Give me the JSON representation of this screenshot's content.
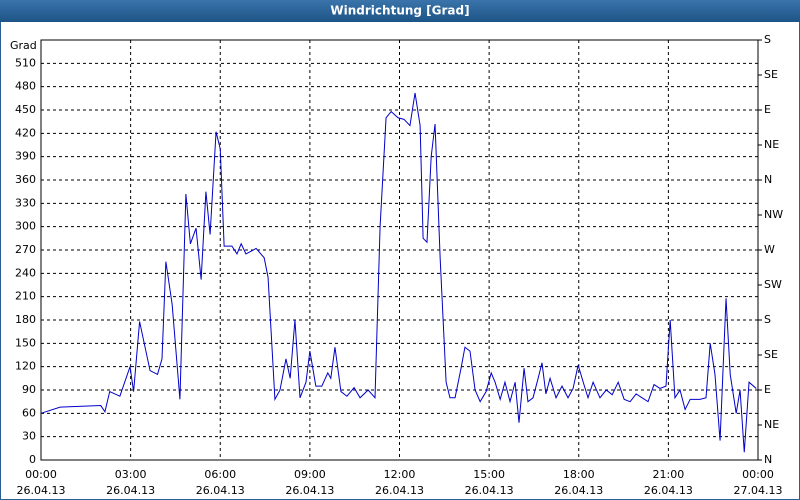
{
  "chart_data": {
    "type": "line",
    "title": "Windrichtung [Grad]",
    "ylabel": "Grad",
    "color": "#0000c8",
    "grid": true,
    "xlim": [
      0,
      24
    ],
    "ylim": [
      0,
      540
    ],
    "y2lim": [
      0,
      540
    ],
    "xticks": [
      {
        "value": 0,
        "label": "00:00"
      },
      {
        "value": 3,
        "label": "03:00"
      },
      {
        "value": 6,
        "label": "06:00"
      },
      {
        "value": 9,
        "label": "09:00"
      },
      {
        "value": 12,
        "label": "12:00"
      },
      {
        "value": 15,
        "label": "15:00"
      },
      {
        "value": 18,
        "label": "18:00"
      },
      {
        "value": 21,
        "label": "21:00"
      },
      {
        "value": 24,
        "label": "00:00"
      }
    ],
    "xtick_dates": [
      "26.04.13",
      "26.04.13",
      "26.04.13",
      "26.04.13",
      "26.04.13",
      "26.04.13",
      "26.04.13",
      "26.04.13",
      "27.04.13"
    ],
    "yticks": [
      0,
      30,
      60,
      90,
      120,
      150,
      180,
      210,
      240,
      270,
      300,
      330,
      360,
      390,
      420,
      450,
      480,
      510
    ],
    "y2ticks": [
      {
        "value": 0,
        "label": "N"
      },
      {
        "value": 45,
        "label": "NE"
      },
      {
        "value": 90,
        "label": "E"
      },
      {
        "value": 135,
        "label": "SE"
      },
      {
        "value": 180,
        "label": "S"
      },
      {
        "value": 225,
        "label": "SW"
      },
      {
        "value": 270,
        "label": "W"
      },
      {
        "value": 315,
        "label": "NW"
      },
      {
        "value": 360,
        "label": "N"
      },
      {
        "value": 405,
        "label": "NE"
      },
      {
        "value": 450,
        "label": "E"
      },
      {
        "value": 495,
        "label": "SE"
      },
      {
        "value": 540,
        "label": "S"
      }
    ],
    "x": [
      0,
      0.64,
      2.0,
      2.14,
      2.3,
      2.64,
      2.98,
      3.1,
      3.3,
      3.65,
      3.9,
      4.05,
      4.18,
      4.39,
      4.65,
      4.85,
      5.0,
      5.19,
      5.36,
      5.52,
      5.66,
      5.86,
      6.0,
      6.13,
      6.39,
      6.56,
      6.7,
      6.86,
      7.2,
      7.47,
      7.6,
      7.83,
      8.0,
      8.2,
      8.34,
      8.5,
      8.67,
      8.87,
      9.0,
      9.2,
      9.4,
      9.6,
      9.7,
      9.84,
      10.04,
      10.24,
      10.48,
      10.68,
      10.95,
      11.18,
      11.35,
      11.55,
      11.72,
      11.95,
      12.15,
      12.35,
      12.52,
      12.69,
      12.79,
      12.92,
      13.06,
      13.19,
      13.36,
      13.56,
      13.69,
      13.86,
      14.06,
      14.19,
      14.36,
      14.53,
      14.7,
      14.9,
      15.07,
      15.2,
      15.37,
      15.53,
      15.7,
      15.87,
      16.0,
      16.17,
      16.3,
      16.47,
      16.64,
      16.77,
      16.9,
      17.04,
      17.24,
      17.44,
      17.64,
      17.81,
      17.98,
      18.15,
      18.31,
      18.48,
      18.71,
      18.92,
      19.12,
      19.32,
      19.52,
      19.72,
      19.92,
      20.12,
      20.32,
      20.52,
      20.72,
      20.92,
      21.06,
      21.22,
      21.39,
      21.56,
      21.73,
      22.06,
      22.26,
      22.4,
      22.56,
      22.73,
      22.93,
      23.07,
      23.27,
      23.4,
      23.54,
      23.7,
      23.94
    ],
    "values": [
      60,
      68,
      70,
      62,
      88,
      82,
      120,
      88,
      178,
      115,
      110,
      130,
      255,
      200,
      78,
      342,
      278,
      298,
      232,
      345,
      290,
      422,
      400,
      275,
      275,
      265,
      278,
      265,
      272,
      260,
      235,
      78,
      90,
      130,
      105,
      180,
      80,
      100,
      140,
      95,
      95,
      112,
      105,
      145,
      88,
      82,
      93,
      80,
      90,
      80,
      300,
      440,
      448,
      440,
      438,
      430,
      472,
      430,
      285,
      280,
      390,
      432,
      260,
      100,
      80,
      80,
      118,
      145,
      140,
      90,
      75,
      88,
      112,
      100,
      78,
      100,
      75,
      100,
      48,
      118,
      75,
      80,
      105,
      125,
      85,
      105,
      80,
      95,
      80,
      92,
      122,
      100,
      80,
      100,
      80,
      90,
      84,
      100,
      78,
      75,
      85,
      80,
      75,
      97,
      92,
      95,
      180,
      80,
      90,
      65,
      78,
      78,
      80,
      150,
      110,
      25,
      208,
      110,
      60,
      90,
      10,
      100,
      92
    ]
  }
}
